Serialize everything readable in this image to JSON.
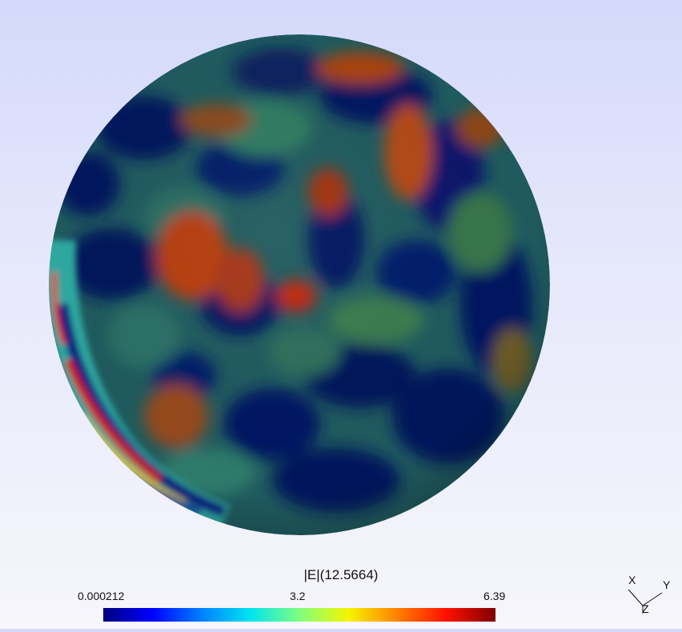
{
  "scalar_bar": {
    "title": "|E|(12.5664)",
    "min_label": "0.000212",
    "mid_label": "3.2",
    "max_label": "6.39",
    "colormap": [
      "#00007f",
      "#0000ff",
      "#0080ff",
      "#00e5f0",
      "#7fff7f",
      "#f5f500",
      "#ff8000",
      "#ff1000",
      "#7f0000"
    ]
  },
  "orientation_axes": {
    "x_label": "X",
    "y_label": "Y",
    "z_label": "Z"
  },
  "colors": {
    "background_top": "#d4d9fb",
    "background_bottom": "#f6f6fb",
    "sphere_base": "#1f5a5e"
  }
}
